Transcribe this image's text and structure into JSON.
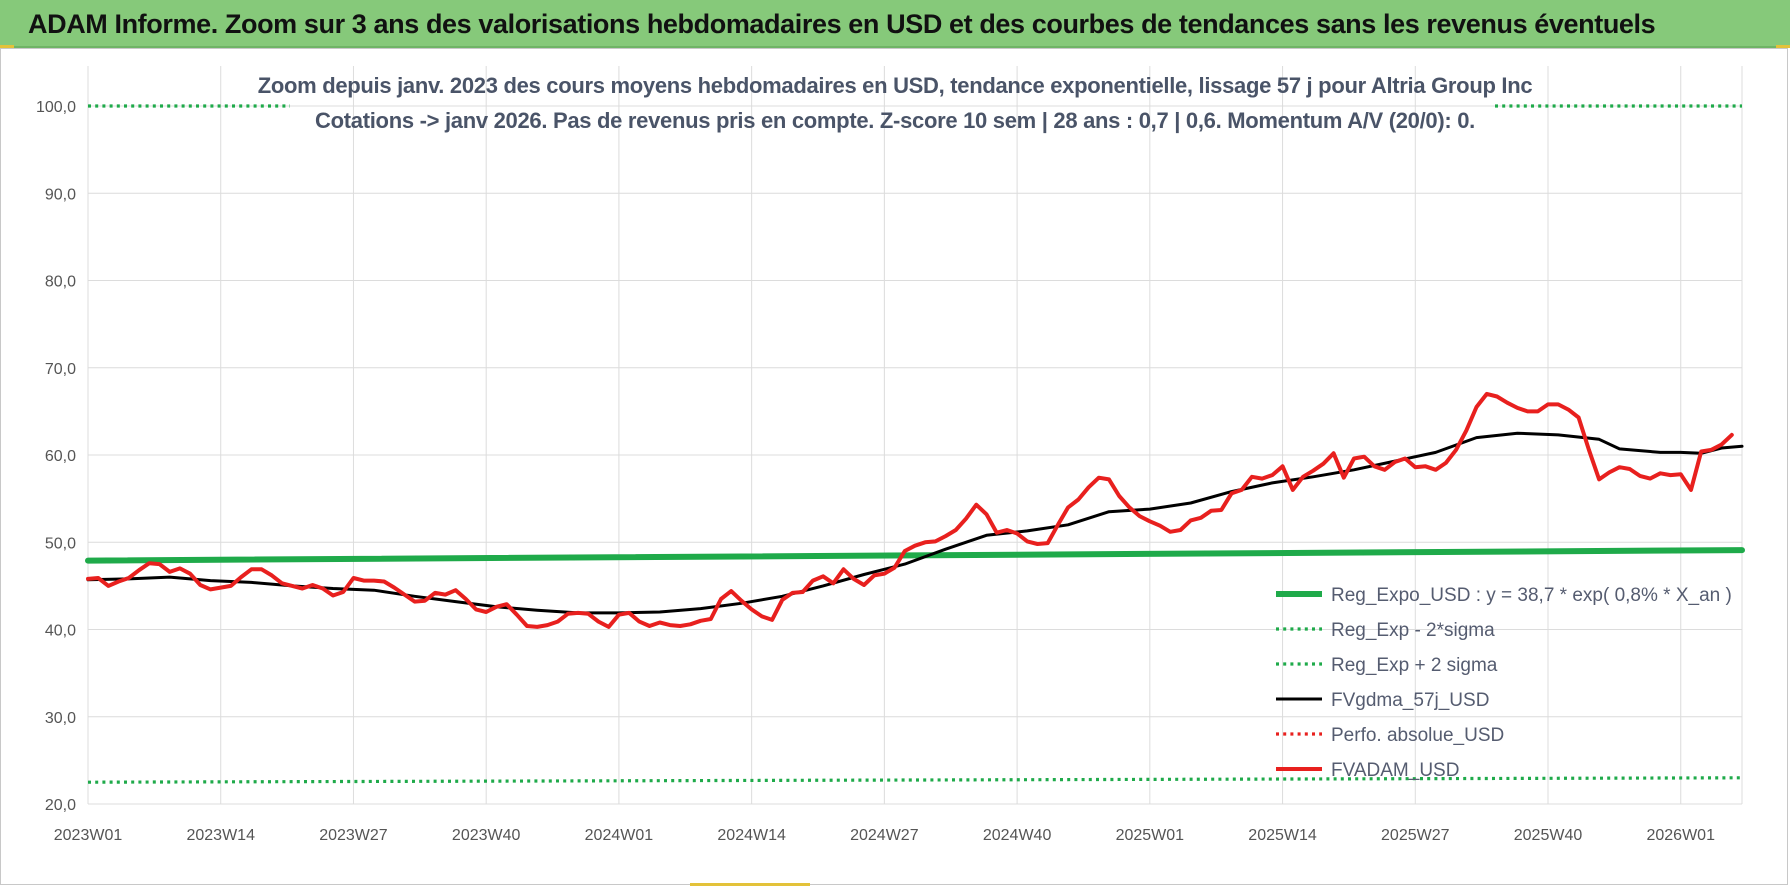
{
  "header": {
    "title": "ADAM Informe. Zoom sur 3 ans des valorisations hebdomadaires en USD et des courbes de tendances sans les revenus éventuels"
  },
  "chart_data": {
    "type": "line",
    "title_line1": "Zoom depuis janv. 2023 des cours moyens hebdomadaires en USD, tendance exponentielle, lissage 57 j pour Altria Group Inc",
    "title_line2": "Cotations -> janv 2026. Pas de revenus pris en compte. Z-score 10 sem | 28 ans : 0,7 | 0,6. Momentum A/V (20/0): 0.",
    "ylim": [
      20,
      100
    ],
    "y_ticks": [
      "20,0",
      "30,0",
      "40,0",
      "50,0",
      "60,0",
      "70,0",
      "80,0",
      "90,0",
      "100,0"
    ],
    "x_range": [
      0,
      162
    ],
    "x_ticks": [
      {
        "pos": 0,
        "label": "2023W01"
      },
      {
        "pos": 13,
        "label": "2023W14"
      },
      {
        "pos": 26,
        "label": "2023W27"
      },
      {
        "pos": 39,
        "label": "2023W40"
      },
      {
        "pos": 52,
        "label": "2024W01"
      },
      {
        "pos": 65,
        "label": "2024W14"
      },
      {
        "pos": 78,
        "label": "2024W27"
      },
      {
        "pos": 91,
        "label": "2024W40"
      },
      {
        "pos": 104,
        "label": "2025W01"
      },
      {
        "pos": 117,
        "label": "2025W14"
      },
      {
        "pos": 130,
        "label": "2025W27"
      },
      {
        "pos": 143,
        "label": "2025W40"
      },
      {
        "pos": 156,
        "label": "2026W01"
      }
    ],
    "series": [
      {
        "name": "Reg_Expo_USD : y = 38,7 * exp( 0,8% *  X_an )",
        "color": "#1faa4a",
        "style": "solid-thick",
        "points": [
          [
            0,
            47.9
          ],
          [
            162,
            49.1
          ]
        ]
      },
      {
        "name": "Reg_Exp - 2*sigma",
        "color": "#1faa4a",
        "style": "dotted",
        "points": [
          [
            0,
            22.5
          ],
          [
            162,
            23.0
          ]
        ]
      },
      {
        "name": "Reg_Exp + 2 sigma",
        "color": "#1faa4a",
        "style": "dotted",
        "points": [
          [
            0,
            100.0
          ],
          [
            162,
            100.0
          ]
        ]
      },
      {
        "name": "FVgdma_57j_USD",
        "color": "#000000",
        "style": "solid",
        "points": [
          [
            0,
            45.7
          ],
          [
            4,
            45.8
          ],
          [
            8,
            46.0
          ],
          [
            12,
            45.6
          ],
          [
            16,
            45.4
          ],
          [
            20,
            45.0
          ],
          [
            24,
            44.7
          ],
          [
            28,
            44.5
          ],
          [
            32,
            43.8
          ],
          [
            36,
            43.2
          ],
          [
            40,
            42.6
          ],
          [
            44,
            42.2
          ],
          [
            48,
            41.9
          ],
          [
            52,
            41.9
          ],
          [
            56,
            42.0
          ],
          [
            60,
            42.4
          ],
          [
            64,
            43.0
          ],
          [
            68,
            43.8
          ],
          [
            72,
            45.0
          ],
          [
            76,
            46.3
          ],
          [
            80,
            47.5
          ],
          [
            84,
            49.2
          ],
          [
            88,
            50.8
          ],
          [
            92,
            51.3
          ],
          [
            96,
            52.0
          ],
          [
            100,
            53.5
          ],
          [
            104,
            53.8
          ],
          [
            108,
            54.5
          ],
          [
            112,
            55.8
          ],
          [
            116,
            56.8
          ],
          [
            120,
            57.5
          ],
          [
            124,
            58.3
          ],
          [
            128,
            59.3
          ],
          [
            132,
            60.3
          ],
          [
            136,
            62.0
          ],
          [
            140,
            62.5
          ],
          [
            144,
            62.3
          ],
          [
            148,
            61.8
          ],
          [
            150,
            60.7
          ],
          [
            152,
            60.5
          ],
          [
            154,
            60.3
          ],
          [
            156,
            60.3
          ],
          [
            158,
            60.2
          ],
          [
            160,
            60.8
          ],
          [
            162,
            61.0
          ]
        ]
      },
      {
        "name": "Perfo. absolue_USD",
        "color": "#e8201e",
        "style": "dotted",
        "points": []
      },
      {
        "name": "FVADAM_USD",
        "color": "#e8201e",
        "style": "solid-thick",
        "points": [
          [
            0,
            45.8
          ],
          [
            1,
            45.9
          ],
          [
            2,
            45.0
          ],
          [
            3,
            45.5
          ],
          [
            4,
            45.9
          ],
          [
            5,
            46.8
          ],
          [
            6,
            47.6
          ],
          [
            7,
            47.5
          ],
          [
            8,
            46.6
          ],
          [
            9,
            47.0
          ],
          [
            10,
            46.4
          ],
          [
            11,
            45.1
          ],
          [
            12,
            44.6
          ],
          [
            13,
            44.8
          ],
          [
            14,
            45.0
          ],
          [
            15,
            46.0
          ],
          [
            16,
            46.9
          ],
          [
            17,
            46.9
          ],
          [
            18,
            46.2
          ],
          [
            19,
            45.3
          ],
          [
            20,
            45.0
          ],
          [
            21,
            44.7
          ],
          [
            22,
            45.1
          ],
          [
            23,
            44.7
          ],
          [
            24,
            43.9
          ],
          [
            25,
            44.3
          ],
          [
            26,
            45.9
          ],
          [
            27,
            45.6
          ],
          [
            28,
            45.6
          ],
          [
            29,
            45.5
          ],
          [
            30,
            44.8
          ],
          [
            31,
            44.0
          ],
          [
            32,
            43.2
          ],
          [
            33,
            43.3
          ],
          [
            34,
            44.2
          ],
          [
            35,
            44.0
          ],
          [
            36,
            44.5
          ],
          [
            37,
            43.5
          ],
          [
            38,
            42.3
          ],
          [
            39,
            42.0
          ],
          [
            40,
            42.6
          ],
          [
            41,
            42.9
          ],
          [
            42,
            41.7
          ],
          [
            43,
            40.4
          ],
          [
            44,
            40.3
          ],
          [
            45,
            40.5
          ],
          [
            46,
            40.9
          ],
          [
            47,
            41.8
          ],
          [
            48,
            41.9
          ],
          [
            49,
            41.8
          ],
          [
            50,
            40.9
          ],
          [
            51,
            40.3
          ],
          [
            52,
            41.7
          ],
          [
            53,
            41.9
          ],
          [
            54,
            40.9
          ],
          [
            55,
            40.4
          ],
          [
            56,
            40.8
          ],
          [
            57,
            40.5
          ],
          [
            58,
            40.4
          ],
          [
            59,
            40.6
          ],
          [
            60,
            41.0
          ],
          [
            61,
            41.2
          ],
          [
            62,
            43.5
          ],
          [
            63,
            44.4
          ],
          [
            64,
            43.3
          ],
          [
            65,
            42.3
          ],
          [
            66,
            41.5
          ],
          [
            67,
            41.1
          ],
          [
            68,
            43.4
          ],
          [
            69,
            44.2
          ],
          [
            70,
            44.3
          ],
          [
            71,
            45.6
          ],
          [
            72,
            46.1
          ],
          [
            73,
            45.3
          ],
          [
            74,
            46.9
          ],
          [
            75,
            45.8
          ],
          [
            76,
            45.1
          ],
          [
            77,
            46.2
          ],
          [
            78,
            46.4
          ],
          [
            79,
            47.1
          ],
          [
            80,
            49.0
          ],
          [
            81,
            49.6
          ],
          [
            82,
            50.0
          ],
          [
            83,
            50.1
          ],
          [
            84,
            50.7
          ],
          [
            85,
            51.4
          ],
          [
            86,
            52.7
          ],
          [
            87,
            54.3
          ],
          [
            88,
            53.2
          ],
          [
            89,
            51.1
          ],
          [
            90,
            51.4
          ],
          [
            91,
            51.0
          ],
          [
            92,
            50.1
          ],
          [
            93,
            49.8
          ],
          [
            94,
            49.9
          ],
          [
            95,
            52.0
          ],
          [
            96,
            54.0
          ],
          [
            97,
            54.9
          ],
          [
            98,
            56.3
          ],
          [
            99,
            57.4
          ],
          [
            100,
            57.2
          ],
          [
            101,
            55.3
          ],
          [
            102,
            54.0
          ],
          [
            103,
            53.0
          ],
          [
            104,
            52.4
          ],
          [
            105,
            51.9
          ],
          [
            106,
            51.2
          ],
          [
            107,
            51.4
          ],
          [
            108,
            52.5
          ],
          [
            109,
            52.8
          ],
          [
            110,
            53.6
          ],
          [
            111,
            53.7
          ],
          [
            112,
            55.6
          ],
          [
            113,
            56.0
          ],
          [
            114,
            57.5
          ],
          [
            115,
            57.3
          ],
          [
            116,
            57.7
          ],
          [
            117,
            58.7
          ],
          [
            118,
            56.0
          ],
          [
            119,
            57.5
          ],
          [
            120,
            58.2
          ],
          [
            121,
            59.0
          ],
          [
            122,
            60.2
          ],
          [
            123,
            57.4
          ],
          [
            124,
            59.6
          ],
          [
            125,
            59.8
          ],
          [
            126,
            58.7
          ],
          [
            127,
            58.3
          ],
          [
            128,
            59.2
          ],
          [
            129,
            59.6
          ],
          [
            130,
            58.6
          ],
          [
            131,
            58.7
          ],
          [
            132,
            58.3
          ],
          [
            133,
            59.1
          ],
          [
            134,
            60.6
          ],
          [
            135,
            62.8
          ],
          [
            136,
            65.5
          ],
          [
            137,
            67.0
          ],
          [
            138,
            66.7
          ],
          [
            139,
            66.0
          ],
          [
            140,
            65.4
          ],
          [
            141,
            65.0
          ],
          [
            142,
            65.0
          ],
          [
            143,
            65.8
          ],
          [
            144,
            65.8
          ],
          [
            145,
            65.2
          ],
          [
            146,
            64.3
          ],
          [
            147,
            60.6
          ],
          [
            148,
            57.2
          ],
          [
            149,
            58.0
          ],
          [
            150,
            58.6
          ],
          [
            151,
            58.4
          ],
          [
            152,
            57.6
          ],
          [
            153,
            57.3
          ],
          [
            154,
            57.9
          ],
          [
            155,
            57.7
          ],
          [
            156,
            57.8
          ],
          [
            157,
            56.0
          ],
          [
            158,
            60.4
          ],
          [
            159,
            60.6
          ],
          [
            160,
            61.2
          ],
          [
            161,
            62.3
          ]
        ]
      }
    ]
  }
}
